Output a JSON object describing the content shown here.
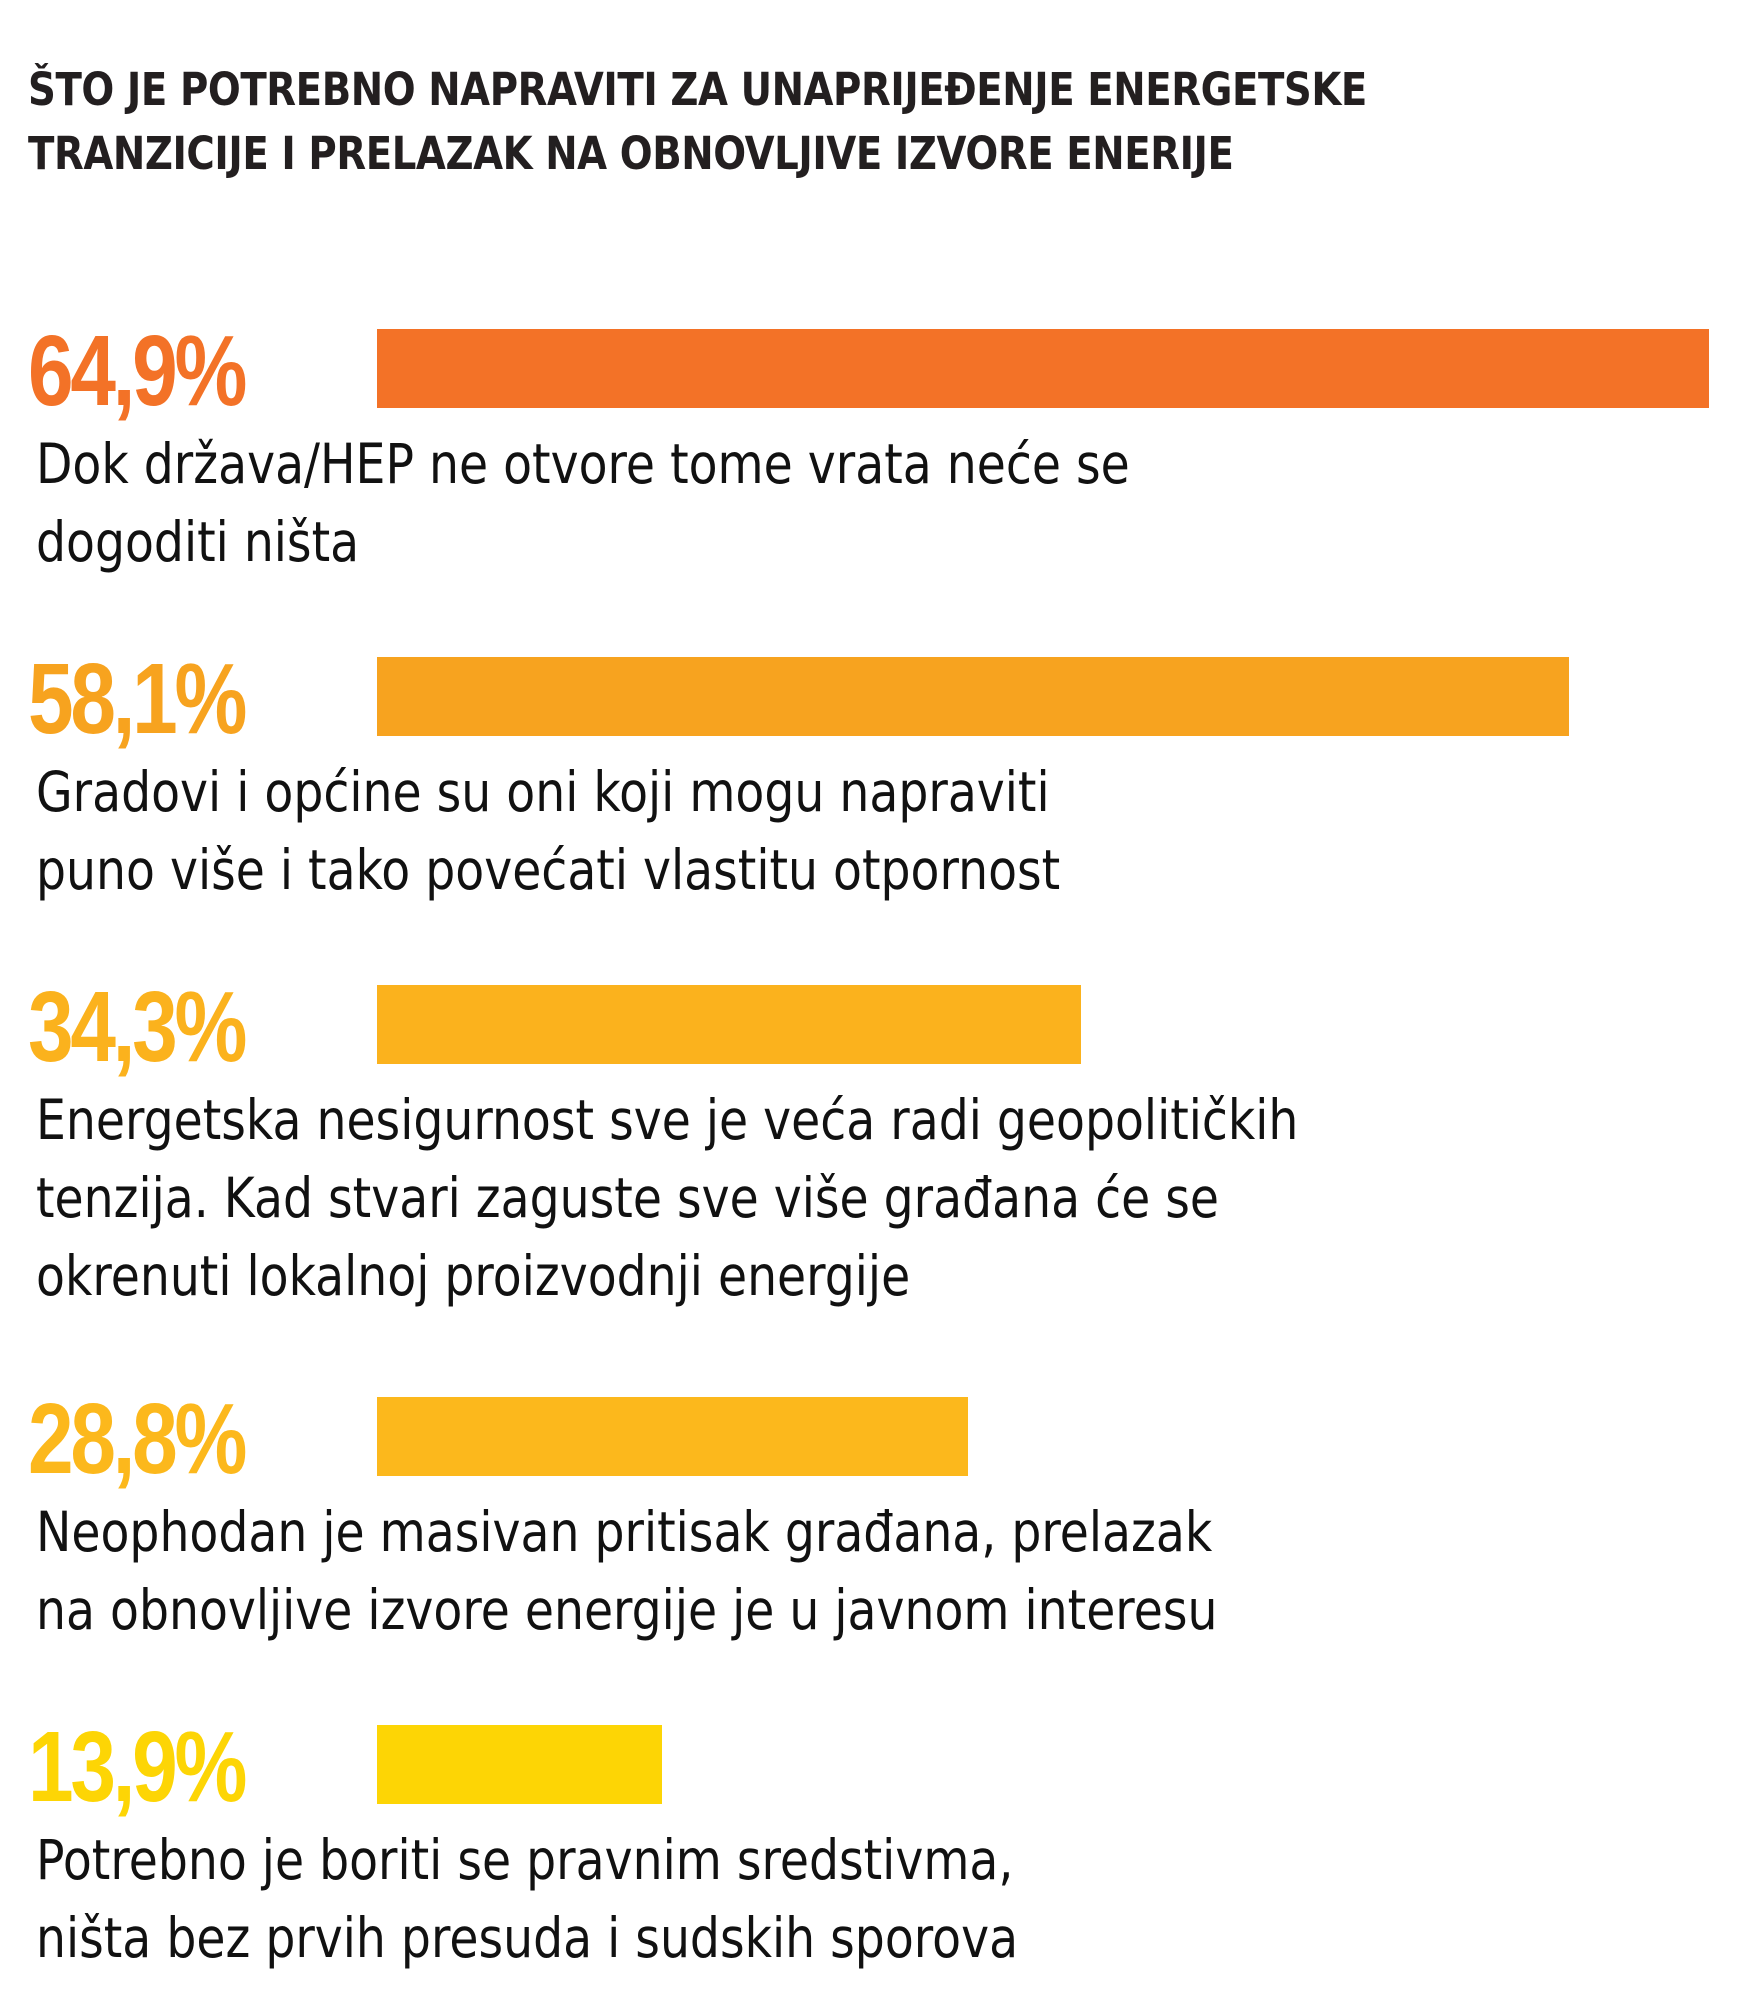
{
  "chart_data": {
    "type": "bar",
    "orientation": "horizontal",
    "title_lines": [
      "ŠTO JE POTREBNO NAPRAVITI ZA UNAPRIJEĐENJE ENERGETSKE",
      "TRANZICIJE I PRELAZAK NA OBNOVLJIVE IZVORE ENERIJE"
    ],
    "xlim": [
      0,
      64.9
    ],
    "unit": "%",
    "items": [
      {
        "value": 64.9,
        "value_label": "64,9%",
        "color": "#f37227",
        "label_lines": [
          "Dok država/HEP ne otvore tome vrata neće se",
          "dogoditi ništa"
        ]
      },
      {
        "value": 58.1,
        "value_label": "58,1%",
        "color": "#f7a31f",
        "label_lines": [
          "Gradovi i općine su oni koji mogu napraviti",
          "puno više i tako povećati vlastitu otpornost"
        ]
      },
      {
        "value": 34.3,
        "value_label": "34,3%",
        "color": "#fbb21d",
        "label_lines": [
          "Energetska nesigurnost sve je veća radi geopolitičkih",
          "tenzija. Kad stvari zaguste sve više građana će se",
          "okrenuti lokalnoj proizvodnji energije"
        ]
      },
      {
        "value": 28.8,
        "value_label": "28,8%",
        "color": "#fcb81c",
        "label_lines": [
          "Neophodan je masivan pritisak građana, prelazak",
          "na obnovljive izvore energije je u javnom interesu"
        ]
      },
      {
        "value": 13.9,
        "value_label": "13,9%",
        "color": "#fdd505",
        "label_lines": [
          "Potrebno je boriti se pravnim sredstivma,",
          "ništa bez prvih presuda i sudskih sporova"
        ]
      }
    ]
  }
}
